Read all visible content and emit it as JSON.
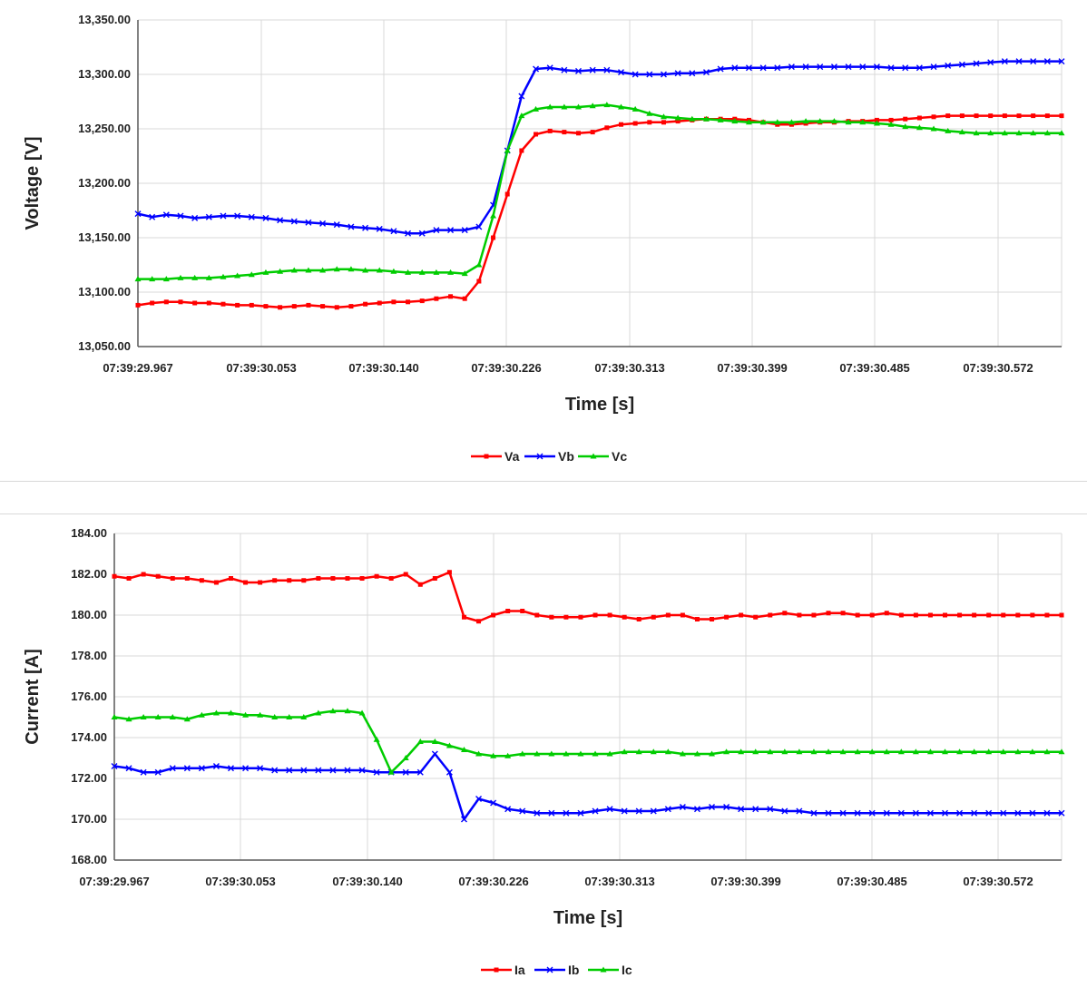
{
  "charts": [
    {
      "type": "line",
      "xlabel": "Time [s]",
      "ylabel": "Voltage [V]",
      "x_tick_labels": [
        "07:39:29.967",
        "07:39:30.053",
        "07:39:30.140",
        "07:39:30.226",
        "07:39:30.313",
        "07:39:30.399",
        "07:39:30.485",
        "07:39:30.572"
      ],
      "y_tick_labels": [
        "13,350.00",
        "13,300.00",
        "13,250.00",
        "13,200.00",
        "13,150.00",
        "13,100.00",
        "13,050.00"
      ],
      "ylim": [
        13050,
        13350
      ],
      "grid": true,
      "legend_position": "bottom",
      "series": [
        {
          "name": "Va",
          "color": "#ff0000",
          "marker": "square",
          "x": [
            0,
            10,
            20,
            30,
            40,
            50,
            60,
            70,
            80,
            90,
            100,
            110,
            120,
            130,
            140,
            150,
            160,
            170,
            180,
            190,
            200,
            210,
            220,
            230,
            240,
            250,
            260,
            270,
            280,
            290,
            300,
            310,
            320,
            330,
            340,
            350,
            360,
            370,
            380,
            390,
            400,
            410,
            420,
            430,
            440,
            450,
            460,
            470,
            480,
            490,
            500,
            510,
            520,
            530,
            540,
            550,
            560,
            570,
            580,
            590,
            600,
            610,
            620,
            630,
            640,
            650
          ],
          "values": [
            13088,
            13090,
            13091,
            13091,
            13090,
            13090,
            13089,
            13088,
            13088,
            13087,
            13086,
            13087,
            13088,
            13087,
            13086,
            13087,
            13089,
            13090,
            13091,
            13091,
            13092,
            13094,
            13096,
            13094,
            13110,
            13150,
            13190,
            13230,
            13245,
            13248,
            13247,
            13246,
            13247,
            13251,
            13254,
            13255,
            13256,
            13256,
            13257,
            13258,
            13259,
            13259,
            13259,
            13258,
            13256,
            13254,
            13254,
            13255,
            13256,
            13256,
            13257,
            13257,
            13258,
            13258,
            13259,
            13260,
            13261,
            13262,
            13262,
            13262,
            13262,
            13262,
            13262,
            13262,
            13262,
            13262
          ]
        },
        {
          "name": "Vb",
          "color": "#0000ff",
          "marker": "x",
          "x": [
            0,
            10,
            20,
            30,
            40,
            50,
            60,
            70,
            80,
            90,
            100,
            110,
            120,
            130,
            140,
            150,
            160,
            170,
            180,
            190,
            200,
            210,
            220,
            230,
            240,
            250,
            260,
            270,
            280,
            290,
            300,
            310,
            320,
            330,
            340,
            350,
            360,
            370,
            380,
            390,
            400,
            410,
            420,
            430,
            440,
            450,
            460,
            470,
            480,
            490,
            500,
            510,
            520,
            530,
            540,
            550,
            560,
            570,
            580,
            590,
            600,
            610,
            620,
            630,
            640,
            650
          ],
          "values": [
            13172,
            13169,
            13171,
            13170,
            13168,
            13169,
            13170,
            13170,
            13169,
            13168,
            13166,
            13165,
            13164,
            13163,
            13162,
            13160,
            13159,
            13158,
            13156,
            13154,
            13154,
            13157,
            13157,
            13157,
            13160,
            13180,
            13230,
            13280,
            13305,
            13306,
            13304,
            13303,
            13304,
            13304,
            13302,
            13300,
            13300,
            13300,
            13301,
            13301,
            13302,
            13305,
            13306,
            13306,
            13306,
            13306,
            13307,
            13307,
            13307,
            13307,
            13307,
            13307,
            13307,
            13306,
            13306,
            13306,
            13307,
            13308,
            13309,
            13310,
            13311,
            13312,
            13312,
            13312,
            13312,
            13312
          ]
        },
        {
          "name": "Vc",
          "color": "#00cc00",
          "marker": "triangle",
          "x": [
            0,
            10,
            20,
            30,
            40,
            50,
            60,
            70,
            80,
            90,
            100,
            110,
            120,
            130,
            140,
            150,
            160,
            170,
            180,
            190,
            200,
            210,
            220,
            230,
            240,
            250,
            260,
            270,
            280,
            290,
            300,
            310,
            320,
            330,
            340,
            350,
            360,
            370,
            380,
            390,
            400,
            410,
            420,
            430,
            440,
            450,
            460,
            470,
            480,
            490,
            500,
            510,
            520,
            530,
            540,
            550,
            560,
            570,
            580,
            590,
            600,
            610,
            620,
            630,
            640,
            650
          ],
          "values": [
            13112,
            13112,
            13112,
            13113,
            13113,
            13113,
            13114,
            13115,
            13116,
            13118,
            13119,
            13120,
            13120,
            13120,
            13121,
            13121,
            13120,
            13120,
            13119,
            13118,
            13118,
            13118,
            13118,
            13117,
            13125,
            13170,
            13230,
            13262,
            13268,
            13270,
            13270,
            13270,
            13271,
            13272,
            13270,
            13268,
            13264,
            13261,
            13260,
            13259,
            13259,
            13258,
            13257,
            13256,
            13256,
            13256,
            13256,
            13257,
            13257,
            13257,
            13256,
            13256,
            13255,
            13254,
            13252,
            13251,
            13250,
            13248,
            13247,
            13246,
            13246,
            13246,
            13246,
            13246,
            13246,
            13246
          ]
        }
      ]
    },
    {
      "type": "line",
      "xlabel": "Time [s]",
      "ylabel": "Current [A]",
      "x_tick_labels": [
        "07:39:29.967",
        "07:39:30.053",
        "07:39:30.140",
        "07:39:30.226",
        "07:39:30.313",
        "07:39:30.399",
        "07:39:30.485",
        "07:39:30.572"
      ],
      "y_tick_labels": [
        "184.00",
        "182.00",
        "180.00",
        "178.00",
        "176.00",
        "174.00",
        "172.00",
        "170.00",
        "168.00"
      ],
      "ylim": [
        168,
        184
      ],
      "grid": true,
      "legend_position": "bottom",
      "series": [
        {
          "name": "Ia",
          "color": "#ff0000",
          "marker": "square",
          "x": [
            0,
            10,
            20,
            30,
            40,
            50,
            60,
            70,
            80,
            90,
            100,
            110,
            120,
            130,
            140,
            150,
            160,
            170,
            180,
            190,
            200,
            210,
            220,
            230,
            240,
            250,
            260,
            270,
            280,
            290,
            300,
            310,
            320,
            330,
            340,
            350,
            360,
            370,
            380,
            390,
            400,
            410,
            420,
            430,
            440,
            450,
            460,
            470,
            480,
            490,
            500,
            510,
            520,
            530,
            540,
            550,
            560,
            570,
            580,
            590,
            600,
            610,
            620,
            630,
            640,
            650
          ],
          "values": [
            181.9,
            181.8,
            182.0,
            181.9,
            181.8,
            181.8,
            181.7,
            181.6,
            181.8,
            181.6,
            181.6,
            181.7,
            181.7,
            181.7,
            181.8,
            181.8,
            181.8,
            181.8,
            181.9,
            181.8,
            182.0,
            181.5,
            181.8,
            182.1,
            179.9,
            179.7,
            180.0,
            180.2,
            180.2,
            180.0,
            179.9,
            179.9,
            179.9,
            180.0,
            180.0,
            179.9,
            179.8,
            179.9,
            180.0,
            180.0,
            179.8,
            179.8,
            179.9,
            180.0,
            179.9,
            180.0,
            180.1,
            180.0,
            180.0,
            180.1,
            180.1,
            180.0,
            180.0,
            180.1,
            180.0,
            180.0,
            180.0,
            180.0,
            180.0,
            180.0,
            180.0,
            180.0,
            180.0,
            180.0,
            180.0,
            180.0
          ]
        },
        {
          "name": "Ib",
          "color": "#0000ff",
          "marker": "x",
          "x": [
            0,
            10,
            20,
            30,
            40,
            50,
            60,
            70,
            80,
            90,
            100,
            110,
            120,
            130,
            140,
            150,
            160,
            170,
            180,
            190,
            200,
            210,
            220,
            230,
            240,
            250,
            260,
            270,
            280,
            290,
            300,
            310,
            320,
            330,
            340,
            350,
            360,
            370,
            380,
            390,
            400,
            410,
            420,
            430,
            440,
            450,
            460,
            470,
            480,
            490,
            500,
            510,
            520,
            530,
            540,
            550,
            560,
            570,
            580,
            590,
            600,
            610,
            620,
            630,
            640,
            650
          ],
          "values": [
            172.6,
            172.5,
            172.3,
            172.3,
            172.5,
            172.5,
            172.5,
            172.6,
            172.5,
            172.5,
            172.5,
            172.4,
            172.4,
            172.4,
            172.4,
            172.4,
            172.4,
            172.4,
            172.3,
            172.3,
            172.3,
            172.3,
            173.2,
            172.3,
            170.0,
            171.0,
            170.8,
            170.5,
            170.4,
            170.3,
            170.3,
            170.3,
            170.3,
            170.4,
            170.5,
            170.4,
            170.4,
            170.4,
            170.5,
            170.6,
            170.5,
            170.6,
            170.6,
            170.5,
            170.5,
            170.5,
            170.4,
            170.4,
            170.3,
            170.3,
            170.3,
            170.3,
            170.3,
            170.3,
            170.3,
            170.3,
            170.3,
            170.3,
            170.3,
            170.3,
            170.3,
            170.3,
            170.3,
            170.3,
            170.3,
            170.3
          ]
        },
        {
          "name": "Ic",
          "color": "#00cc00",
          "marker": "triangle",
          "x": [
            0,
            10,
            20,
            30,
            40,
            50,
            60,
            70,
            80,
            90,
            100,
            110,
            120,
            130,
            140,
            150,
            160,
            170,
            180,
            190,
            200,
            210,
            220,
            230,
            240,
            250,
            260,
            270,
            280,
            290,
            300,
            310,
            320,
            330,
            340,
            350,
            360,
            370,
            380,
            390,
            400,
            410,
            420,
            430,
            440,
            450,
            460,
            470,
            480,
            490,
            500,
            510,
            520,
            530,
            540,
            550,
            560,
            570,
            580,
            590,
            600,
            610,
            620,
            630,
            640,
            650
          ],
          "values": [
            175.0,
            174.9,
            175.0,
            175.0,
            175.0,
            174.9,
            175.1,
            175.2,
            175.2,
            175.1,
            175.1,
            175.0,
            175.0,
            175.0,
            175.2,
            175.3,
            175.3,
            175.2,
            173.9,
            172.3,
            173.0,
            173.8,
            173.8,
            173.6,
            173.4,
            173.2,
            173.1,
            173.1,
            173.2,
            173.2,
            173.2,
            173.2,
            173.2,
            173.2,
            173.2,
            173.3,
            173.3,
            173.3,
            173.3,
            173.2,
            173.2,
            173.2,
            173.3,
            173.3,
            173.3,
            173.3,
            173.3,
            173.3,
            173.3,
            173.3,
            173.3,
            173.3,
            173.3,
            173.3,
            173.3,
            173.3,
            173.3,
            173.3,
            173.3,
            173.3,
            173.3,
            173.3,
            173.3,
            173.3,
            173.3,
            173.3
          ]
        }
      ]
    }
  ],
  "chart_data": [
    {
      "type": "line",
      "xlabel": "Time [s]",
      "ylabel": "Voltage [V]",
      "ylim": [
        13050,
        13350
      ],
      "series_names": [
        "Va",
        "Vb",
        "Vc"
      ]
    },
    {
      "type": "line",
      "xlabel": "Time [s]",
      "ylabel": "Current [A]",
      "ylim": [
        168,
        184
      ],
      "series_names": [
        "Ia",
        "Ib",
        "Ic"
      ]
    }
  ]
}
